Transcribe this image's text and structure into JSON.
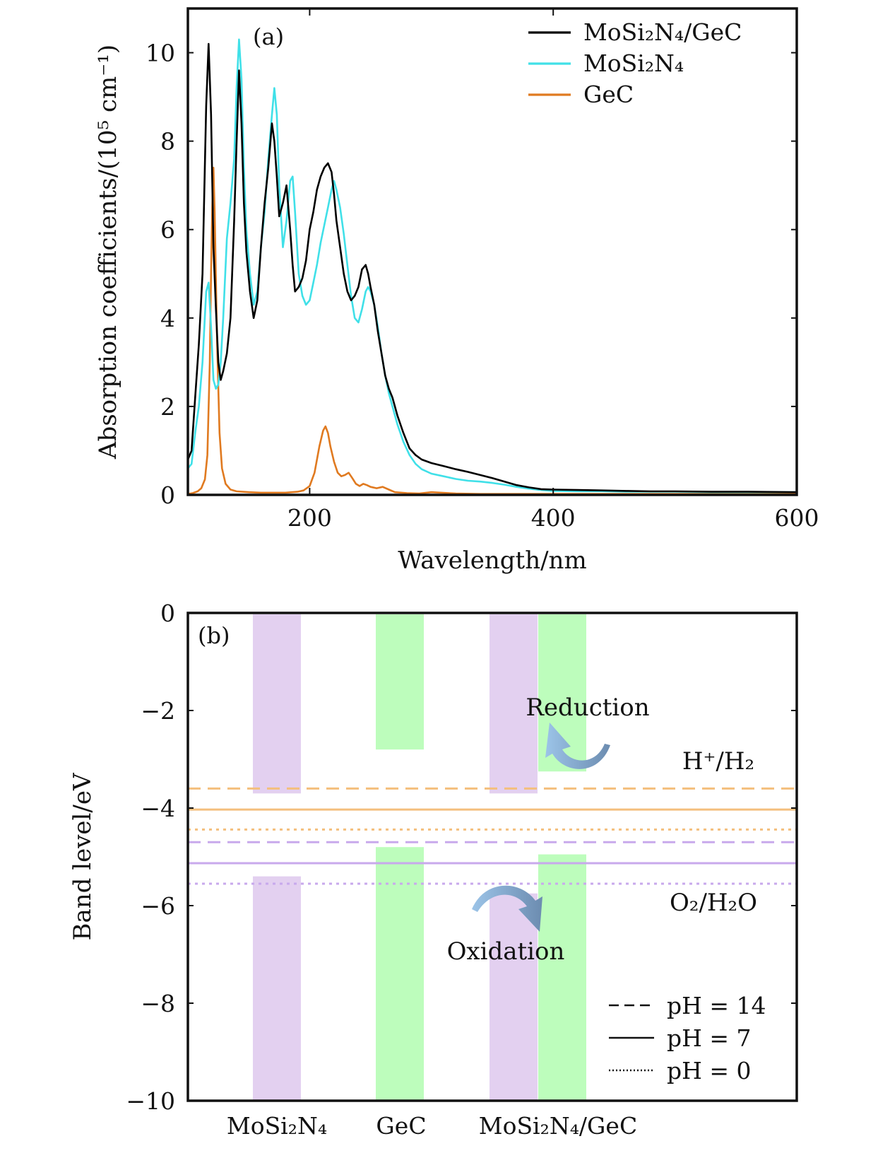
{
  "chart_data": [
    {
      "panel": "(a)",
      "type": "line",
      "xlabel": "Wavelength/nm",
      "ylabel": "Absorption coefficients/(10⁵ cm⁻¹)",
      "xlim": [
        100,
        600
      ],
      "ylim": [
        0,
        11
      ],
      "xticks": [
        200,
        400,
        600
      ],
      "yticks": [
        0,
        2,
        4,
        6,
        8,
        10
      ],
      "legend_position": "top-right",
      "series": [
        {
          "name": "MoSi₂N₄/GeC",
          "color": "#000000",
          "x": [
            100,
            103,
            106,
            109,
            112,
            115,
            117,
            119,
            121,
            123,
            125,
            127,
            129,
            132,
            135,
            138,
            140,
            142,
            144,
            146,
            148,
            151,
            154,
            157,
            160,
            163,
            166,
            169,
            171,
            173,
            175,
            178,
            181,
            184,
            186,
            188,
            191,
            194,
            197,
            200,
            203,
            206,
            209,
            212,
            215,
            218,
            220,
            222,
            225,
            228,
            231,
            234,
            237,
            240,
            243,
            246,
            248,
            250,
            253,
            256,
            259,
            262,
            265,
            268,
            272,
            277,
            282,
            287,
            292,
            300,
            310,
            320,
            330,
            340,
            350,
            360,
            370,
            380,
            390,
            400,
            420,
            440,
            460,
            480,
            500,
            530,
            560,
            600
          ],
          "y": [
            0.8,
            1.0,
            2.2,
            3.4,
            5.0,
            8.8,
            10.2,
            8.6,
            5.6,
            4.2,
            3.0,
            2.6,
            2.8,
            3.2,
            4.0,
            6.2,
            8.0,
            9.6,
            8.4,
            6.6,
            5.5,
            4.6,
            4.0,
            4.4,
            5.6,
            6.6,
            7.4,
            8.4,
            8.0,
            7.2,
            6.3,
            6.6,
            7.0,
            6.0,
            5.2,
            4.6,
            4.7,
            4.9,
            5.3,
            6.0,
            6.4,
            6.9,
            7.2,
            7.4,
            7.5,
            7.3,
            6.8,
            6.2,
            5.6,
            5.0,
            4.6,
            4.4,
            4.5,
            4.7,
            5.1,
            5.2,
            5.0,
            4.7,
            4.3,
            3.7,
            3.2,
            2.7,
            2.4,
            2.2,
            1.8,
            1.4,
            1.05,
            0.9,
            0.8,
            0.72,
            0.65,
            0.58,
            0.52,
            0.45,
            0.38,
            0.3,
            0.22,
            0.17,
            0.13,
            0.12,
            0.11,
            0.1,
            0.09,
            0.08,
            0.08,
            0.07,
            0.07,
            0.06
          ]
        },
        {
          "name": "MoSi₂N₄",
          "color": "#40E0E8",
          "x": [
            100,
            103,
            106,
            109,
            112,
            115,
            117,
            119,
            121,
            123,
            125,
            127,
            129,
            132,
            135,
            138,
            140,
            142,
            144,
            146,
            148,
            151,
            154,
            157,
            160,
            163,
            166,
            169,
            171,
            173,
            175,
            178,
            181,
            184,
            186,
            188,
            191,
            194,
            197,
            200,
            203,
            206,
            209,
            212,
            215,
            218,
            220,
            222,
            225,
            228,
            231,
            234,
            237,
            240,
            243,
            246,
            248,
            250,
            253,
            256,
            259,
            262,
            265,
            268,
            272,
            277,
            282,
            287,
            292,
            300,
            310,
            320,
            330,
            340,
            350,
            360,
            370,
            380,
            390,
            400,
            420,
            440,
            460,
            480,
            500,
            530,
            560,
            600
          ],
          "y": [
            0.6,
            0.7,
            1.4,
            2.0,
            3.0,
            4.6,
            4.8,
            3.8,
            2.6,
            2.4,
            2.5,
            3.0,
            4.0,
            5.8,
            6.6,
            7.6,
            9.2,
            10.3,
            9.4,
            7.4,
            6.0,
            5.0,
            4.3,
            4.6,
            5.6,
            6.4,
            7.6,
            8.6,
            9.2,
            8.6,
            7.0,
            5.6,
            6.2,
            7.1,
            7.2,
            6.4,
            5.0,
            4.5,
            4.3,
            4.4,
            4.8,
            5.2,
            5.7,
            6.1,
            6.5,
            6.9,
            7.1,
            6.9,
            6.5,
            5.9,
            5.2,
            4.5,
            4.0,
            3.9,
            4.2,
            4.6,
            4.7,
            4.6,
            4.3,
            3.8,
            3.2,
            2.7,
            2.3,
            2.0,
            1.6,
            1.2,
            0.9,
            0.7,
            0.58,
            0.48,
            0.42,
            0.36,
            0.32,
            0.3,
            0.27,
            0.23,
            0.18,
            0.14,
            0.11,
            0.09,
            0.08,
            0.08,
            0.07,
            0.07,
            0.07,
            0.06,
            0.06,
            0.06
          ]
        },
        {
          "name": "GeC",
          "color": "#E07A20",
          "x": [
            100,
            104,
            108,
            111,
            114,
            116,
            118,
            119,
            120,
            121,
            122,
            124,
            126,
            128,
            131,
            135,
            140,
            150,
            160,
            170,
            180,
            190,
            195,
            200,
            204,
            208,
            211,
            213,
            215,
            217,
            220,
            223,
            226,
            229,
            232,
            235,
            238,
            241,
            244,
            247,
            250,
            255,
            260,
            265,
            270,
            280,
            290,
            300,
            320,
            340,
            360,
            380,
            400,
            450,
            500,
            550,
            600
          ],
          "y": [
            0.02,
            0.04,
            0.08,
            0.15,
            0.35,
            0.9,
            3.0,
            5.0,
            6.5,
            7.4,
            6.4,
            3.4,
            1.4,
            0.6,
            0.25,
            0.12,
            0.08,
            0.06,
            0.05,
            0.05,
            0.05,
            0.07,
            0.1,
            0.2,
            0.5,
            1.1,
            1.45,
            1.55,
            1.4,
            1.1,
            0.75,
            0.5,
            0.42,
            0.45,
            0.5,
            0.38,
            0.25,
            0.2,
            0.25,
            0.22,
            0.18,
            0.15,
            0.18,
            0.12,
            0.06,
            0.04,
            0.03,
            0.06,
            0.03,
            0.02,
            0.02,
            0.02,
            0.02,
            0.02,
            0.02,
            0.02,
            0.02
          ]
        }
      ]
    },
    {
      "panel": "(b)",
      "type": "bar",
      "xlabel": "",
      "ylabel": "Band level/eV",
      "ylim": [
        -10,
        0
      ],
      "yticks": [
        0,
        -2,
        -4,
        -6,
        -8,
        -10
      ],
      "categories": [
        "MoSi₂N₄",
        "GeC",
        "MoSi₂N₄/GeC"
      ],
      "bands": [
        {
          "category": "MoSi₂N₄",
          "component": "MoSi₂N₄",
          "color": "#E3D0F0",
          "cbm_top": 0,
          "cbm_bottom": -3.7,
          "vbm_top": -5.4,
          "vbm_bottom": -10
        },
        {
          "category": "GeC",
          "component": "GeC",
          "color": "#BDFDBC",
          "cbm_top": 0,
          "cbm_bottom": -2.8,
          "vbm_top": -4.8,
          "vbm_bottom": -10
        },
        {
          "category": "MoSi₂N₄/GeC",
          "component": "MoSi₂N₄",
          "color": "#E3D0F0",
          "cbm_top": 0,
          "cbm_bottom": -3.7,
          "vbm_top": -5.75,
          "vbm_bottom": -10
        },
        {
          "category": "MoSi₂N₄/GeC",
          "component": "GeC",
          "color": "#BDFDBC",
          "cbm_top": 0,
          "cbm_bottom": -3.25,
          "vbm_top": -4.95,
          "vbm_bottom": -10
        }
      ],
      "reference_levels": [
        {
          "couple": "H⁺/H₂",
          "color": "#F4BF7D",
          "pH": "14",
          "style": "dashed",
          "value": -3.6
        },
        {
          "couple": "H⁺/H₂",
          "color": "#F4BF7D",
          "pH": "7",
          "style": "solid",
          "value": -4.03
        },
        {
          "couple": "H⁺/H₂",
          "color": "#F4BF7D",
          "pH": "0",
          "style": "dotted",
          "value": -4.44
        },
        {
          "couple": "O₂/H₂O",
          "color": "#C8A9EC",
          "pH": "14",
          "style": "dashed",
          "value": -4.7
        },
        {
          "couple": "O₂/H₂O",
          "color": "#C8A9EC",
          "pH": "7",
          "style": "solid",
          "value": -5.13
        },
        {
          "couple": "O₂/H₂O",
          "color": "#C8A9EC",
          "pH": "0",
          "style": "dotted",
          "value": -5.55
        }
      ],
      "annotations": {
        "reduction": "Reduction",
        "oxidation": "Oxidation",
        "h_couple": "H⁺/H₂",
        "o_couple": "O₂/H₂O"
      },
      "legend_position": "bottom-right",
      "legend": [
        {
          "label": "pH = 14",
          "style": "dashed"
        },
        {
          "label": "pH = 7",
          "style": "solid"
        },
        {
          "label": "pH = 0",
          "style": "dotted"
        }
      ],
      "arrow_color": "#7A9CC0"
    }
  ]
}
